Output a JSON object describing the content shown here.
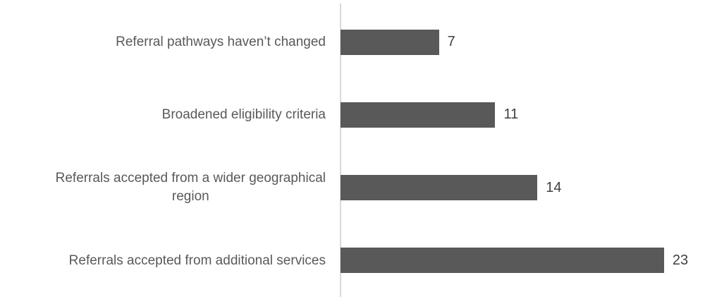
{
  "chart_data": {
    "type": "bar",
    "orientation": "horizontal",
    "title": "",
    "xlabel": "",
    "ylabel": "",
    "categories": [
      "Referral pathways haven’t changed",
      "Broadened eligibility criteria",
      "Referrals accepted from a wider geographical\nregion",
      "Referrals accepted from additional services"
    ],
    "values": [
      7,
      11,
      14,
      23
    ],
    "xlim": [
      0,
      23
    ],
    "grid": false,
    "legend": false,
    "data_labels": [
      7,
      11,
      14,
      23
    ],
    "colors": {
      "bar": "#595959",
      "axis_line": "#d9d9d9",
      "category_label": "#595959",
      "value_label": "#404040",
      "background": "#ffffff"
    }
  }
}
